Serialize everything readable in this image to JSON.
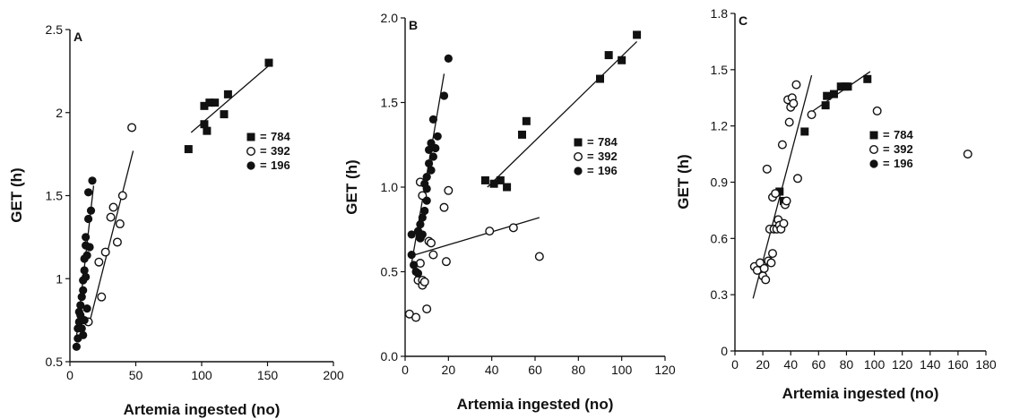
{
  "chart_data": [
    {
      "panel": "A",
      "type": "scatter",
      "xlabel": "Artemia ingested (no)",
      "ylabel": "GET (h)",
      "xlim": [
        0,
        200
      ],
      "ylim": [
        0.5,
        2.5
      ],
      "xticks": [
        0,
        50,
        100,
        150,
        200
      ],
      "xtick_labels": [
        "0",
        "50",
        "100",
        "150",
        "200"
      ],
      "yticks": [
        0.5,
        1,
        1.5,
        2,
        2.5
      ],
      "ytick_labels": [
        "0.5",
        "1",
        "1.5",
        "2",
        "2.5"
      ],
      "legend_position": "right",
      "series": [
        {
          "name": "784",
          "marker": "square",
          "points": [
            [
              90,
              1.78
            ],
            [
              102,
              1.93
            ],
            [
              102,
              2.04
            ],
            [
              104,
              1.89
            ],
            [
              106,
              2.06
            ],
            [
              110,
              2.06
            ],
            [
              117,
              1.99
            ],
            [
              120,
              2.11
            ],
            [
              151,
              2.3
            ]
          ]
        },
        {
          "name": "392",
          "marker": "open-circle",
          "points": [
            [
              14,
              0.74
            ],
            [
              22,
              1.1
            ],
            [
              24,
              0.89
            ],
            [
              27,
              1.16
            ],
            [
              31,
              1.37
            ],
            [
              33,
              1.43
            ],
            [
              36,
              1.22
            ],
            [
              38,
              1.33
            ],
            [
              40,
              1.5
            ],
            [
              47,
              1.91
            ]
          ]
        },
        {
          "name": "196",
          "marker": "filled-circle",
          "points": [
            [
              5,
              0.59
            ],
            [
              6,
              0.64
            ],
            [
              6,
              0.7
            ],
            [
              7,
              0.74
            ],
            [
              7,
              0.8
            ],
            [
              8,
              0.78
            ],
            [
              8,
              0.84
            ],
            [
              9,
              0.7
            ],
            [
              9,
              0.89
            ],
            [
              10,
              0.66
            ],
            [
              10,
              0.93
            ],
            [
              10,
              0.99
            ],
            [
              11,
              0.75
            ],
            [
              11,
              1.05
            ],
            [
              11,
              1.12
            ],
            [
              12,
              1.2
            ],
            [
              12,
              1.25
            ],
            [
              12,
              1.01
            ],
            [
              13,
              0.82
            ],
            [
              13,
              1.14
            ],
            [
              14,
              1.36
            ],
            [
              14,
              1.52
            ],
            [
              15,
              1.19
            ],
            [
              16,
              1.41
            ],
            [
              17,
              1.59
            ]
          ]
        }
      ],
      "fit_lines": [
        {
          "series": "784",
          "from": [
            92,
            1.88
          ],
          "to": [
            152,
            2.29
          ]
        },
        {
          "series": "392",
          "from": [
            15,
            0.74
          ],
          "to": [
            48,
            1.77
          ]
        },
        {
          "series": "196",
          "from": [
            5,
            0.65
          ],
          "to": [
            18,
            1.56
          ]
        }
      ]
    },
    {
      "panel": "B",
      "type": "scatter",
      "xlabel": "Artemia ingested (no)",
      "ylabel": "GET (h)",
      "xlim": [
        0,
        120
      ],
      "ylim": [
        0,
        2.0
      ],
      "xticks": [
        0,
        20,
        40,
        60,
        80,
        100,
        120
      ],
      "xtick_labels": [
        "0",
        "20",
        "40",
        "60",
        "80",
        "100",
        "120"
      ],
      "yticks": [
        0,
        0.5,
        1.0,
        1.5,
        2.0
      ],
      "ytick_labels": [
        "0.0",
        "0.5",
        "1.0",
        "1.5",
        "2.0"
      ],
      "legend_position": "right",
      "series": [
        {
          "name": "784",
          "marker": "square",
          "points": [
            [
              37,
              1.04
            ],
            [
              41,
              1.02
            ],
            [
              44,
              1.04
            ],
            [
              47,
              1.0
            ],
            [
              54,
              1.31
            ],
            [
              56,
              1.39
            ],
            [
              90,
              1.64
            ],
            [
              94,
              1.78
            ],
            [
              100,
              1.75
            ],
            [
              107,
              1.9
            ]
          ]
        },
        {
          "name": "392",
          "marker": "open-circle",
          "points": [
            [
              2,
              0.25
            ],
            [
              5,
              0.23
            ],
            [
              6,
              0.45
            ],
            [
              7,
              0.55
            ],
            [
              7,
              0.7
            ],
            [
              8,
              0.45
            ],
            [
              8,
              0.42
            ],
            [
              9,
              0.44
            ],
            [
              10,
              0.28
            ],
            [
              11,
              0.68
            ],
            [
              12,
              0.67
            ],
            [
              13,
              0.6
            ],
            [
              18,
              0.88
            ],
            [
              19,
              0.56
            ],
            [
              20,
              0.98
            ],
            [
              39,
              0.74
            ],
            [
              50,
              0.76
            ],
            [
              62,
              0.59
            ],
            [
              7,
              1.03
            ],
            [
              8,
              0.95
            ]
          ]
        },
        {
          "name": "196",
          "marker": "filled-circle",
          "points": [
            [
              3,
              0.72
            ],
            [
              3,
              0.6
            ],
            [
              4,
              0.54
            ],
            [
              5,
              0.5
            ],
            [
              6,
              0.49
            ],
            [
              6,
              0.74
            ],
            [
              7,
              0.7
            ],
            [
              7,
              0.78
            ],
            [
              8,
              0.72
            ],
            [
              8,
              0.82
            ],
            [
              9,
              0.86
            ],
            [
              9,
              1.02
            ],
            [
              10,
              1.06
            ],
            [
              10,
              0.99
            ],
            [
              11,
              1.14
            ],
            [
              11,
              1.22
            ],
            [
              12,
              1.26
            ],
            [
              12,
              1.1
            ],
            [
              13,
              1.18
            ],
            [
              13,
              1.4
            ],
            [
              14,
              1.23
            ],
            [
              15,
              1.3
            ],
            [
              18,
              1.54
            ],
            [
              20,
              1.76
            ],
            [
              10,
              0.92
            ]
          ]
        }
      ],
      "fit_lines": [
        {
          "series": "784",
          "from": [
            38,
            1.0
          ],
          "to": [
            107,
            1.86
          ]
        },
        {
          "series": "392",
          "from": [
            2,
            0.59
          ],
          "to": [
            62,
            0.82
          ]
        },
        {
          "series": "196",
          "from": [
            3,
            0.55
          ],
          "to": [
            18,
            1.67
          ]
        }
      ]
    },
    {
      "panel": "C",
      "type": "scatter",
      "xlabel": "Artemia ingested (no)",
      "ylabel": "GET (h)",
      "xlim": [
        0,
        180
      ],
      "ylim": [
        0,
        1.8
      ],
      "xticks": [
        0,
        20,
        40,
        60,
        80,
        100,
        120,
        140,
        160,
        180
      ],
      "xtick_labels": [
        "0",
        "20",
        "40",
        "60",
        "80",
        "100",
        "120",
        "140",
        "160",
        "180"
      ],
      "yticks": [
        0,
        0.3,
        0.6,
        0.9,
        1.2,
        1.5,
        1.8
      ],
      "ytick_labels": [
        "0",
        "0.3",
        "0.6",
        "0.9",
        "1.2",
        "1.5",
        "1.8"
      ],
      "legend_position": "right",
      "series": [
        {
          "name": "784",
          "marker": "square",
          "points": [
            [
              50,
              1.17
            ],
            [
              65,
              1.31
            ],
            [
              66,
              1.36
            ],
            [
              71,
              1.37
            ],
            [
              76,
              1.41
            ],
            [
              79,
              1.41
            ],
            [
              81,
              1.41
            ],
            [
              95,
              1.45
            ],
            [
              32,
              0.85
            ],
            [
              35,
              0.8
            ]
          ]
        },
        {
          "name": "392",
          "marker": "open-circle",
          "points": [
            [
              14,
              0.45
            ],
            [
              16,
              0.43
            ],
            [
              18,
              0.47
            ],
            [
              20,
              0.4
            ],
            [
              21,
              0.44
            ],
            [
              22,
              0.38
            ],
            [
              23,
              0.97
            ],
            [
              24,
              0.48
            ],
            [
              25,
              0.65
            ],
            [
              26,
              0.47
            ],
            [
              27,
              0.82
            ],
            [
              27,
              0.52
            ],
            [
              28,
              0.65
            ],
            [
              29,
              0.84
            ],
            [
              30,
              0.65
            ],
            [
              31,
              0.7
            ],
            [
              32,
              0.67
            ],
            [
              33,
              0.65
            ],
            [
              34,
              1.1
            ],
            [
              35,
              0.68
            ],
            [
              36,
              0.78
            ],
            [
              37,
              0.8
            ],
            [
              38,
              1.34
            ],
            [
              39,
              1.22
            ],
            [
              40,
              1.3
            ],
            [
              41,
              1.35
            ],
            [
              42,
              1.32
            ],
            [
              44,
              1.42
            ],
            [
              45,
              0.92
            ],
            [
              55,
              1.26
            ],
            [
              102,
              1.28
            ],
            [
              167,
              1.05
            ]
          ]
        },
        {
          "name": "196",
          "marker": "filled-circle",
          "points": []
        }
      ],
      "fit_lines": [
        {
          "series": "392",
          "from": [
            13,
            0.28
          ],
          "to": [
            55,
            1.47
          ]
        },
        {
          "series": "784",
          "from": [
            52,
            1.26
          ],
          "to": [
            97,
            1.49
          ]
        }
      ]
    }
  ],
  "figure": {
    "panel_labels": [
      "A",
      "B",
      "C"
    ],
    "xlabel": "Artemia ingested (no)",
    "ylabel": "GET (h)"
  }
}
